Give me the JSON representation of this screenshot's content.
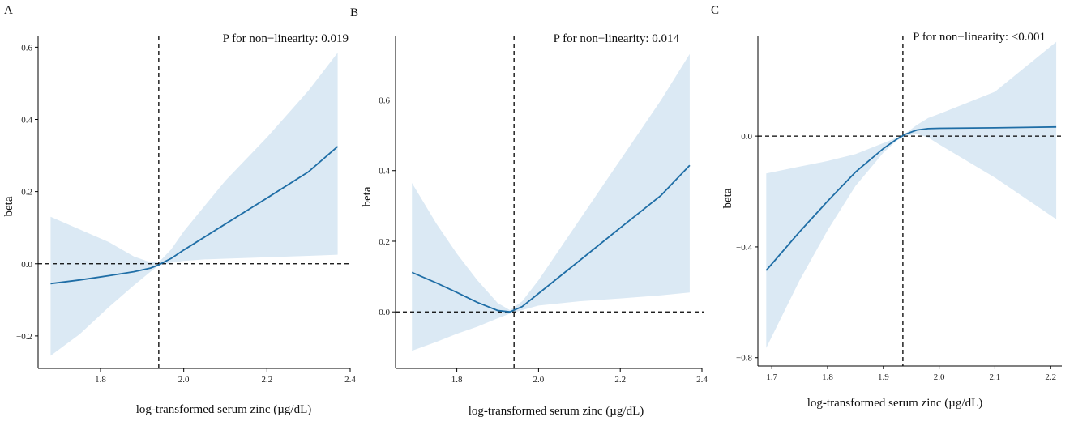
{
  "chart_data": [
    {
      "panel": "A",
      "type": "line",
      "title": "",
      "xlabel": "log-transformed serum zinc (µg/dL)",
      "ylabel": "beta",
      "annotation": "P for non−linearity:  0.019",
      "xlim": [
        1.65,
        2.4
      ],
      "ylim": [
        -0.29,
        0.63
      ],
      "xticks": [
        1.8,
        2.0,
        2.2,
        2.4
      ],
      "xtick_labels": [
        "1.8",
        "2.0",
        "2.2",
        "2.4"
      ],
      "yticks": [
        -0.2,
        0.0,
        0.2,
        0.4,
        0.6
      ],
      "ytick_labels": [
        "−0.2",
        "0.0",
        "0.2",
        "0.4",
        "0.6"
      ],
      "ref_x": 1.94,
      "ref_y": 0.0,
      "series": [
        {
          "name": "beta",
          "x": [
            1.68,
            1.75,
            1.82,
            1.88,
            1.92,
            1.94,
            1.97,
            2.0,
            2.05,
            2.1,
            2.2,
            2.3,
            2.37
          ],
          "y": [
            -0.055,
            -0.045,
            -0.033,
            -0.022,
            -0.012,
            -0.003,
            0.015,
            0.038,
            0.074,
            0.11,
            0.182,
            0.255,
            0.325
          ],
          "lower": [
            -0.255,
            -0.195,
            -0.12,
            -0.06,
            -0.022,
            -0.005,
            0.003,
            0.008,
            0.012,
            0.014,
            0.018,
            0.022,
            0.025
          ],
          "upper": [
            0.13,
            0.095,
            0.06,
            0.02,
            0.004,
            0.004,
            0.04,
            0.09,
            0.16,
            0.23,
            0.35,
            0.48,
            0.585
          ]
        }
      ]
    },
    {
      "panel": "B",
      "type": "line",
      "title": "",
      "xlabel": "log-transformed serum zinc (µg/dL)",
      "ylabel": "beta",
      "annotation": "P for non−linearity:  0.014",
      "xlim": [
        1.65,
        2.4
      ],
      "ylim": [
        -0.16,
        0.78
      ],
      "xticks": [
        1.8,
        2.0,
        2.2,
        2.4
      ],
      "xtick_labels": [
        "1.8",
        "2.0",
        "2.2",
        "2.4"
      ],
      "yticks": [
        0.0,
        0.2,
        0.4,
        0.6
      ],
      "ytick_labels": [
        "0.0",
        "0.2",
        "0.4",
        "0.6"
      ],
      "ref_x": 1.94,
      "ref_y": 0.0,
      "series": [
        {
          "name": "beta",
          "x": [
            1.69,
            1.75,
            1.8,
            1.85,
            1.9,
            1.93,
            1.96,
            2.0,
            2.1,
            2.2,
            2.3,
            2.37
          ],
          "y": [
            0.112,
            0.082,
            0.055,
            0.027,
            0.004,
            0.0,
            0.015,
            0.052,
            0.145,
            0.238,
            0.33,
            0.415
          ],
          "lower": [
            -0.11,
            -0.085,
            -0.062,
            -0.042,
            -0.018,
            -0.005,
            0.005,
            0.018,
            0.03,
            0.038,
            0.047,
            0.055
          ],
          "upper": [
            0.365,
            0.25,
            0.165,
            0.09,
            0.025,
            0.005,
            0.03,
            0.09,
            0.26,
            0.43,
            0.6,
            0.73
          ]
        }
      ]
    },
    {
      "panel": "C",
      "type": "line",
      "title": "",
      "xlabel": "log-transformed serum zinc (µg/dL)",
      "ylabel": "beta",
      "annotation": "P for non−linearity:  <0.001",
      "xlim": [
        1.675,
        2.22
      ],
      "ylim": [
        -0.83,
        0.36
      ],
      "xticks": [
        1.7,
        1.8,
        1.9,
        2.0,
        2.1,
        2.2
      ],
      "xtick_labels": [
        "1.7",
        "1.8",
        "1.9",
        "2.0",
        "2.1",
        "2.2"
      ],
      "yticks": [
        -0.8,
        -0.4,
        0.0
      ],
      "ytick_labels": [
        "−0.8",
        "−0.4",
        "0.0"
      ],
      "ref_x": 1.935,
      "ref_y": 0.0,
      "series": [
        {
          "name": "beta",
          "x": [
            1.69,
            1.75,
            1.8,
            1.85,
            1.9,
            1.925,
            1.94,
            1.96,
            1.98,
            2.0,
            2.1,
            2.21
          ],
          "y": [
            -0.485,
            -0.345,
            -0.235,
            -0.13,
            -0.045,
            -0.01,
            0.007,
            0.022,
            0.027,
            0.028,
            0.03,
            0.033
          ],
          "lower": [
            -0.765,
            -0.52,
            -0.34,
            -0.18,
            -0.06,
            -0.015,
            0.0,
            0.008,
            -0.005,
            -0.03,
            -0.15,
            -0.3
          ],
          "upper": [
            -0.135,
            -0.11,
            -0.09,
            -0.065,
            -0.025,
            -0.005,
            0.01,
            0.04,
            0.065,
            0.08,
            0.16,
            0.34
          ]
        }
      ]
    }
  ],
  "style": {
    "line_color": "#1f6ea6",
    "band_color": "#dbe9f4",
    "axis_color": "#000000",
    "ref_line_color": "#000000"
  }
}
